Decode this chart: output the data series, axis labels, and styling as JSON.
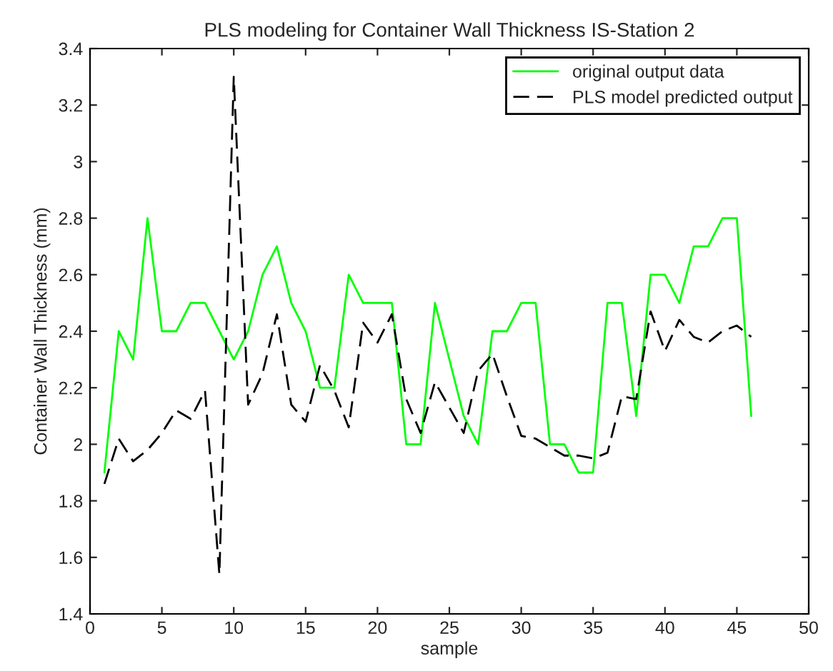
{
  "chart_data": {
    "type": "line",
    "title": "PLS modeling for Container Wall Thickness IS-Station 2",
    "xlabel": "sample",
    "ylabel": "Container Wall Thickness (mm)",
    "x": [
      1,
      2,
      3,
      4,
      5,
      6,
      7,
      8,
      9,
      10,
      11,
      12,
      13,
      14,
      15,
      16,
      17,
      18,
      19,
      20,
      21,
      22,
      23,
      24,
      25,
      26,
      27,
      28,
      29,
      30,
      31,
      32,
      33,
      34,
      35,
      36,
      37,
      38,
      39,
      40,
      41,
      42,
      43,
      44,
      45,
      46
    ],
    "series": [
      {
        "name": "original output data",
        "color": "#00ff00",
        "line_style": "solid",
        "values": [
          1.9,
          2.4,
          2.3,
          2.8,
          2.4,
          2.4,
          2.5,
          2.5,
          2.4,
          2.3,
          2.4,
          2.6,
          2.7,
          2.5,
          2.4,
          2.2,
          2.2,
          2.6,
          2.5,
          2.5,
          2.5,
          2.0,
          2.0,
          2.5,
          2.3,
          2.1,
          2.0,
          2.4,
          2.4,
          2.5,
          2.5,
          2.0,
          2.0,
          1.9,
          1.9,
          2.5,
          2.5,
          2.1,
          2.6,
          2.6,
          2.5,
          2.7,
          2.7,
          2.8,
          2.8,
          2.1
        ]
      },
      {
        "name": "PLS model predicted output",
        "color": "#000000",
        "line_style": "dashed",
        "values": [
          1.86,
          2.02,
          1.94,
          1.98,
          2.04,
          2.12,
          2.09,
          2.19,
          1.54,
          3.3,
          2.14,
          2.25,
          2.46,
          2.14,
          2.08,
          2.28,
          2.19,
          2.06,
          2.43,
          2.36,
          2.46,
          2.16,
          2.04,
          2.22,
          2.13,
          2.04,
          2.26,
          2.32,
          2.17,
          2.03,
          2.02,
          1.99,
          1.96,
          1.96,
          1.95,
          1.97,
          2.17,
          2.16,
          2.47,
          2.33,
          2.44,
          2.38,
          2.36,
          2.4,
          2.42,
          2.38
        ]
      }
    ],
    "xlim": [
      0,
      50
    ],
    "xticks": [
      0,
      5,
      10,
      15,
      20,
      25,
      30,
      35,
      40,
      45,
      50
    ],
    "ylim": [
      1.4,
      3.4
    ],
    "yticks": [
      1.4,
      1.6,
      1.8,
      2,
      2.2,
      2.4,
      2.6,
      2.8,
      3,
      3.2,
      3.4
    ],
    "grid": false,
    "legend": "top right"
  }
}
